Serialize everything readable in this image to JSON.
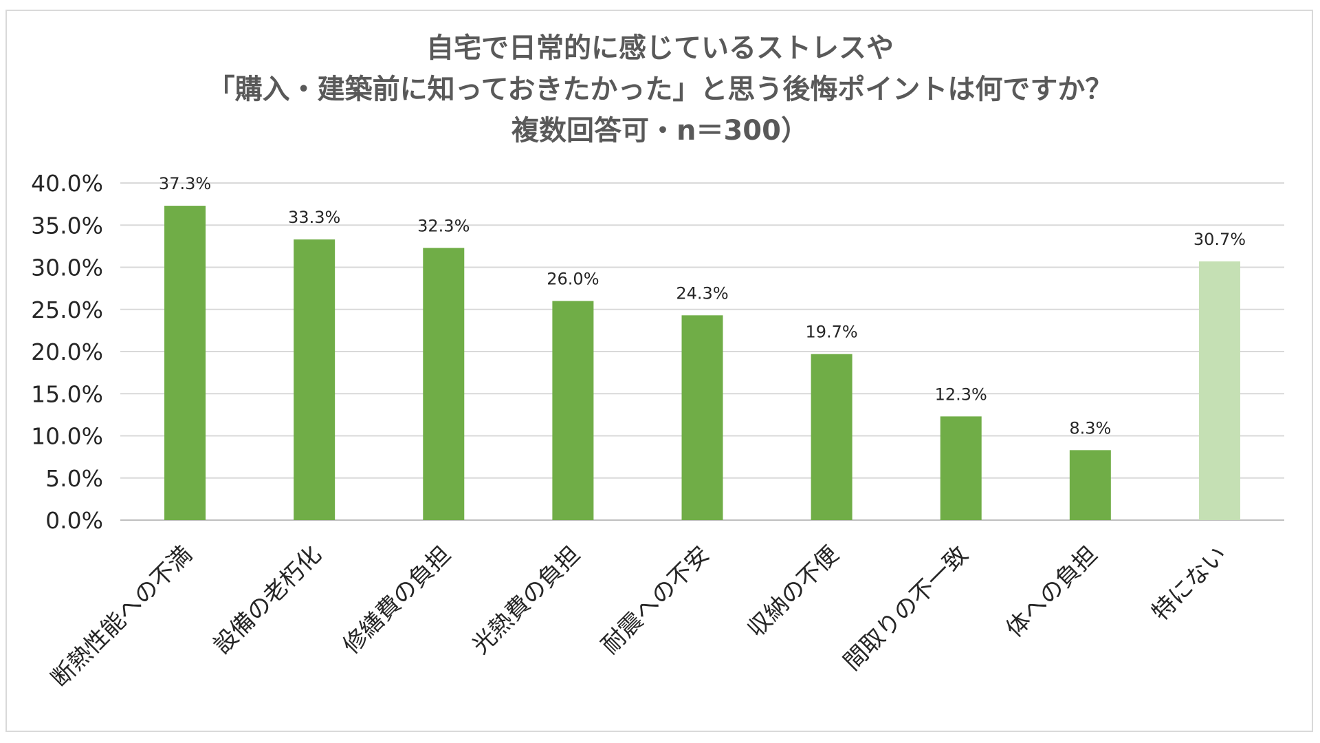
{
  "chart_data": {
    "type": "bar",
    "title": [
      "自宅で日常的に感じているストレスや",
      "「購入・建築前に知っておきたかった」と思う後悔ポイントは何ですか？",
      "複数回答可・n＝300）"
    ],
    "categories": [
      "断熱性能への不満",
      "設備の老朽化",
      "修繕費の負担",
      "光熱費の負担",
      "耐震への不安",
      "収納の不便",
      "間取りの不一致",
      "体への負担",
      "特にない"
    ],
    "values": [
      37.3,
      33.3,
      32.3,
      26.0,
      24.3,
      19.7,
      12.3,
      8.3,
      30.7
    ],
    "value_labels": [
      "37.3%",
      "33.3%",
      "32.3%",
      "26.0%",
      "24.3%",
      "19.7%",
      "12.3%",
      "8.3%",
      "30.7%"
    ],
    "y_ticks": [
      0,
      5,
      10,
      15,
      20,
      25,
      30,
      35,
      40
    ],
    "y_tick_labels": [
      "0.0%",
      "5.0%",
      "10.0%",
      "15.0%",
      "20.0%",
      "25.0%",
      "30.0%",
      "35.0%",
      "40.0%"
    ],
    "ylim": [
      0,
      40
    ],
    "xlabel": "",
    "ylabel": "",
    "grid": true,
    "colors": {
      "bar": "#70ad47",
      "bar_highlight": "#c5e0b4",
      "grid": "#d9d9d9",
      "axis": "#bfbfbf"
    },
    "highlight_categories": [
      "特にない"
    ]
  }
}
